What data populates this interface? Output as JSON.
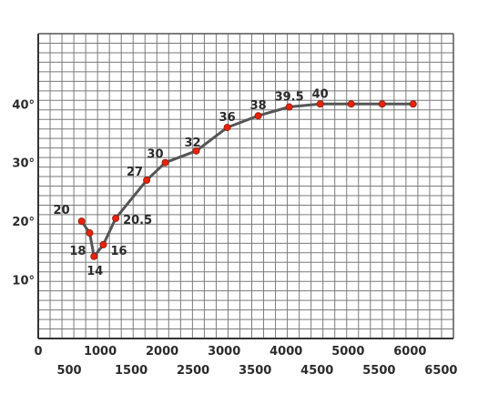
{
  "chart_data": {
    "type": "line",
    "title": "",
    "xlabel": "",
    "ylabel": "",
    "xlim": [
      0,
      6700
    ],
    "ylim": [
      0,
      52
    ],
    "grid": true,
    "x_ticks": [
      {
        "value": 0,
        "label": "0"
      },
      {
        "value": 500,
        "label": "500"
      },
      {
        "value": 1000,
        "label": "1000"
      },
      {
        "value": 1500,
        "label": "1500"
      },
      {
        "value": 2000,
        "label": "2000"
      },
      {
        "value": 2500,
        "label": "2500"
      },
      {
        "value": 3000,
        "label": "3000"
      },
      {
        "value": 3500,
        "label": "3500"
      },
      {
        "value": 4000,
        "label": "4000"
      },
      {
        "value": 4500,
        "label": "4500"
      },
      {
        "value": 5000,
        "label": "5000"
      },
      {
        "value": 5500,
        "label": "5500"
      },
      {
        "value": 6000,
        "label": "6000"
      },
      {
        "value": 6500,
        "label": "6500"
      }
    ],
    "y_ticks": [
      {
        "value": 10,
        "label": "10°"
      },
      {
        "value": 20,
        "label": "20°"
      },
      {
        "value": 30,
        "label": "30°"
      },
      {
        "value": 40,
        "label": "40°"
      }
    ],
    "series": [
      {
        "color": "#e8230c",
        "line_color": "#555555",
        "points": [
          {
            "x": 700,
            "y": 20,
            "label": "20"
          },
          {
            "x": 830,
            "y": 18,
            "label": "18"
          },
          {
            "x": 900,
            "y": 14,
            "label": "14"
          },
          {
            "x": 1050,
            "y": 16,
            "label": "16"
          },
          {
            "x": 1250,
            "y": 20.5,
            "label": "20.5"
          },
          {
            "x": 1750,
            "y": 27,
            "label": "27"
          },
          {
            "x": 2050,
            "y": 30,
            "label": "30"
          },
          {
            "x": 2550,
            "y": 32,
            "label": "32"
          },
          {
            "x": 3050,
            "y": 36,
            "label": "36"
          },
          {
            "x": 3550,
            "y": 38,
            "label": "38"
          },
          {
            "x": 4050,
            "y": 39.5,
            "label": "39.5"
          },
          {
            "x": 4550,
            "y": 40,
            "label": "40"
          },
          {
            "x": 5050,
            "y": 40,
            "label": ""
          },
          {
            "x": 5550,
            "y": 40,
            "label": ""
          },
          {
            "x": 6050,
            "y": 40,
            "label": ""
          }
        ]
      }
    ]
  }
}
